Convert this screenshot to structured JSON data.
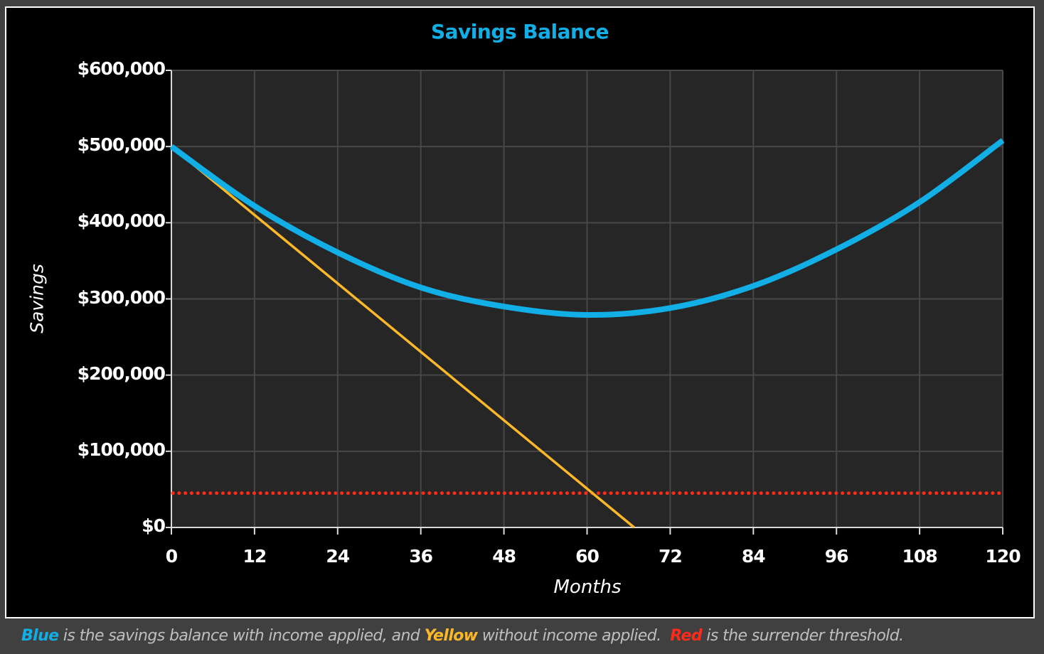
{
  "chart_data": {
    "type": "line",
    "title": "Savings Balance",
    "xlabel": "Months",
    "ylabel": "Savings",
    "xlim": [
      0,
      120
    ],
    "ylim": [
      0,
      600000
    ],
    "x_ticks": [
      0,
      12,
      24,
      36,
      48,
      60,
      72,
      84,
      96,
      108,
      120
    ],
    "x_tick_labels": [
      "0",
      "12",
      "24",
      "36",
      "48",
      "60",
      "72",
      "84",
      "96",
      "108",
      "120"
    ],
    "y_ticks": [
      0,
      100000,
      200000,
      300000,
      400000,
      500000,
      600000
    ],
    "y_tick_labels": [
      "$0",
      "$100,000",
      "$200,000",
      "$300,000",
      "$400,000",
      "$500,000",
      "$600,000"
    ],
    "grid": true,
    "legend": "none (described in caption below chart)",
    "x": [
      0,
      12,
      24,
      36,
      48,
      60,
      72,
      84,
      96,
      108,
      120
    ],
    "series": [
      {
        "name": "Savings balance with income applied",
        "color": "#12afe6",
        "style": "solid-thick",
        "values": [
          500000,
          422000,
          361000,
          315000,
          290000,
          279000,
          288000,
          317000,
          365000,
          427000,
          508000
        ]
      },
      {
        "name": "Savings balance without income applied",
        "color": "#fbb829",
        "style": "solid-thin",
        "values": [
          500000,
          410000,
          320000,
          230000,
          140000,
          50000,
          null,
          null,
          null,
          null,
          null
        ],
        "zero_crossing_month": 66.8
      },
      {
        "name": "Surrender threshold",
        "color": "#ff2a1a",
        "style": "dotted",
        "values": [
          45000,
          45000,
          45000,
          45000,
          45000,
          45000,
          45000,
          45000,
          45000,
          45000,
          45000
        ]
      }
    ]
  },
  "caption": {
    "blue_word": "Blue",
    "part1": " is the savings balance with income applied, and ",
    "yellow_word": "Yellow",
    "part2": " without income applied.  ",
    "red_word": "Red",
    "part3": " is the surrender threshold."
  },
  "colors": {
    "blue": "#12afe6",
    "yellow": "#fbb829",
    "red": "#ff2a1a",
    "plot_bg": "#262626",
    "grid": "#474747"
  }
}
